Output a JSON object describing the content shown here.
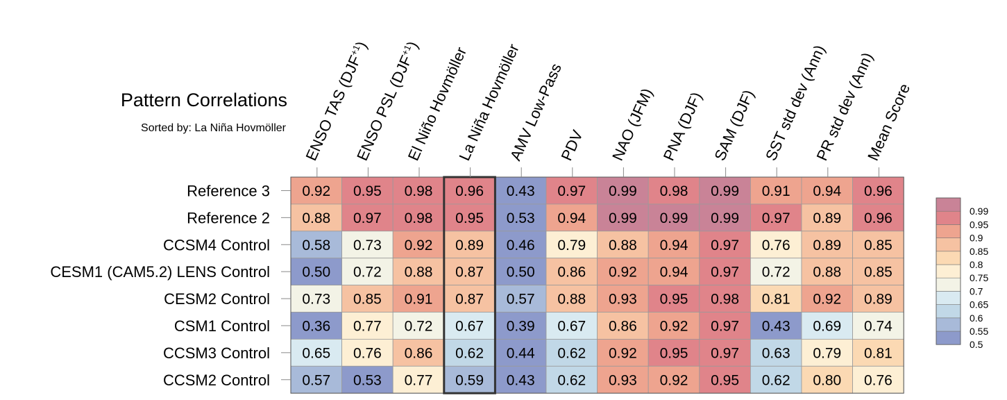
{
  "title": "Pattern Correlations",
  "subtitle": "Sorted by: La Niña Hovmöller",
  "chart_data": {
    "type": "heatmap",
    "title": "Pattern Correlations",
    "subtitle": "Sorted by: La Niña Hovmöller",
    "columns": [
      {
        "text": "ENSO TAS (DJF",
        "sup": "+1",
        "tail": ")"
      },
      {
        "text": "ENSO PSL (DJF",
        "sup": "+1",
        "tail": ")"
      },
      {
        "text": "El Niño Hovmöller",
        "sup": "",
        "tail": ""
      },
      {
        "text": "La Niña Hovmöller",
        "sup": "",
        "tail": ""
      },
      {
        "text": "AMV Low-Pass",
        "sup": "",
        "tail": ""
      },
      {
        "text": "PDV",
        "sup": "",
        "tail": ""
      },
      {
        "text": "NAO (JFM)",
        "sup": "",
        "tail": ""
      },
      {
        "text": "PNA (DJF)",
        "sup": "",
        "tail": ""
      },
      {
        "text": "SAM (DJF)",
        "sup": "",
        "tail": ""
      },
      {
        "text": "SST std dev (Ann)",
        "sup": "",
        "tail": ""
      },
      {
        "text": "PR std dev (Ann)",
        "sup": "",
        "tail": ""
      },
      {
        "text": "Mean Score",
        "sup": "",
        "tail": ""
      }
    ],
    "rows": [
      "Reference 3",
      "Reference 2",
      "CCSM4 Control",
      "CESM1 (CAM5.2) LENS Control",
      "CESM2 Control",
      "CSM1 Control",
      "CCSM3 Control",
      "CCSM2 Control"
    ],
    "values": [
      [
        "0.92",
        "0.95",
        "0.98",
        "0.96",
        "0.43",
        "0.97",
        "0.99",
        "0.98",
        "0.99",
        "0.91",
        "0.94",
        "0.96"
      ],
      [
        "0.88",
        "0.97",
        "0.98",
        "0.95",
        "0.53",
        "0.94",
        "0.99",
        "0.99",
        "0.99",
        "0.97",
        "0.89",
        "0.96"
      ],
      [
        "0.58",
        "0.73",
        "0.92",
        "0.89",
        "0.46",
        "0.79",
        "0.88",
        "0.94",
        "0.97",
        "0.76",
        "0.89",
        "0.85"
      ],
      [
        "0.50",
        "0.72",
        "0.88",
        "0.87",
        "0.50",
        "0.86",
        "0.92",
        "0.94",
        "0.97",
        "0.72",
        "0.88",
        "0.85"
      ],
      [
        "0.73",
        "0.85",
        "0.91",
        "0.87",
        "0.57",
        "0.88",
        "0.93",
        "0.95",
        "0.98",
        "0.81",
        "0.92",
        "0.89"
      ],
      [
        "0.36",
        "0.77",
        "0.72",
        "0.67",
        "0.39",
        "0.67",
        "0.86",
        "0.92",
        "0.97",
        "0.43",
        "0.69",
        "0.74"
      ],
      [
        "0.65",
        "0.76",
        "0.86",
        "0.62",
        "0.44",
        "0.62",
        "0.92",
        "0.95",
        "0.97",
        "0.63",
        "0.79",
        "0.81"
      ],
      [
        "0.57",
        "0.53",
        "0.77",
        "0.59",
        "0.43",
        "0.62",
        "0.93",
        "0.92",
        "0.95",
        "0.62",
        "0.80",
        "0.76"
      ]
    ],
    "highlighted_column": "La Niña Hovmöller",
    "colorbar": {
      "labels": [
        "0.99",
        "0.95",
        "0.9",
        "0.85",
        "0.8",
        "0.75",
        "0.7",
        "0.65",
        "0.6",
        "0.55",
        "0.5"
      ],
      "thresholds": [
        0.5,
        0.55,
        0.6,
        0.65,
        0.7,
        0.75,
        0.8,
        0.85,
        0.9,
        0.95,
        0.99
      ],
      "colors": [
        "#8d9acb",
        "#a8bad9",
        "#c1d8e7",
        "#d9eaf1",
        "#f3f3e6",
        "#fdefd4",
        "#fbd9b3",
        "#f6c2a2",
        "#eea48f",
        "#e0848a",
        "#c98397"
      ]
    },
    "grid": true
  }
}
